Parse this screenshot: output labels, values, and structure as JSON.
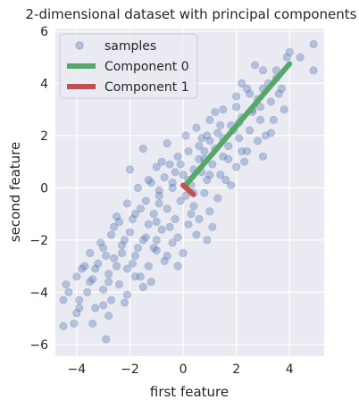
{
  "chart_data": {
    "type": "scatter",
    "title": "2-dimensional dataset with principal components",
    "xlabel": "first feature",
    "ylabel": "second feature",
    "xlim": [
      -4.8,
      5.3
    ],
    "ylim": [
      -6.45,
      6.1
    ],
    "xticks": [
      -4,
      -2,
      0,
      2,
      4
    ],
    "yticks": [
      -6,
      -4,
      -2,
      0,
      2,
      4,
      6
    ],
    "grid": true,
    "legend_position": "top-left",
    "series": [
      {
        "name": "samples",
        "kind": "scatter",
        "color": "#4c72b0",
        "opacity": 0.35,
        "points": [
          [
            4.9,
            5.5
          ],
          [
            4.0,
            5.2
          ],
          [
            3.9,
            5.0
          ],
          [
            4.9,
            4.5
          ],
          [
            3.0,
            4.5
          ],
          [
            3.5,
            4.2
          ],
          [
            3.0,
            3.8
          ],
          [
            2.2,
            4.0
          ],
          [
            3.6,
            3.6
          ],
          [
            2.8,
            3.4
          ],
          [
            2.0,
            3.1
          ],
          [
            3.3,
            3.3
          ],
          [
            2.6,
            3.0
          ],
          [
            1.5,
            3.0
          ],
          [
            2.2,
            2.7
          ],
          [
            2.9,
            2.6
          ],
          [
            3.4,
            2.6
          ],
          [
            1.8,
            2.4
          ],
          [
            2.5,
            2.2
          ],
          [
            1.3,
            2.1
          ],
          [
            2.1,
            1.9
          ],
          [
            2.8,
            1.8
          ],
          [
            1.0,
            1.8
          ],
          [
            1.7,
            1.6
          ],
          [
            0.6,
            1.6
          ],
          [
            2.4,
            1.4
          ],
          [
            0.2,
            1.4
          ],
          [
            1.5,
            1.2
          ],
          [
            0.8,
            1.1
          ],
          [
            3.0,
            1.2
          ],
          [
            -0.2,
            1.2
          ],
          [
            1.1,
            0.9
          ],
          [
            -0.5,
            0.9
          ],
          [
            2.0,
            0.8
          ],
          [
            0.4,
            0.7
          ],
          [
            -1.0,
            0.8
          ],
          [
            1.4,
            0.5
          ],
          [
            0.0,
            0.5
          ],
          [
            -0.7,
            0.4
          ],
          [
            0.9,
            0.3
          ],
          [
            -1.3,
            0.3
          ],
          [
            1.8,
            0.1
          ],
          [
            0.3,
            0.1
          ],
          [
            -0.4,
            0.0
          ],
          [
            -1.7,
            0.0
          ],
          [
            0.8,
            -0.2
          ],
          [
            -0.9,
            -0.3
          ],
          [
            1.3,
            -0.4
          ],
          [
            -0.1,
            -0.5
          ],
          [
            -1.4,
            -0.5
          ],
          [
            -2.1,
            -0.6
          ],
          [
            0.4,
            -0.7
          ],
          [
            -0.6,
            -0.8
          ],
          [
            1.0,
            -0.9
          ],
          [
            -1.1,
            -1.0
          ],
          [
            -1.8,
            -1.0
          ],
          [
            -0.3,
            -1.2
          ],
          [
            -2.4,
            -1.3
          ],
          [
            0.2,
            -1.4
          ],
          [
            -1.3,
            -1.4
          ],
          [
            -0.8,
            -1.6
          ],
          [
            -2.0,
            -1.7
          ],
          [
            -2.7,
            -1.8
          ],
          [
            0.5,
            -1.8
          ],
          [
            -1.5,
            -2.0
          ],
          [
            -0.4,
            -2.1
          ],
          [
            -2.3,
            -2.2
          ],
          [
            -3.0,
            -2.3
          ],
          [
            -1.0,
            -2.4
          ],
          [
            0.9,
            -2.0
          ],
          [
            -3.5,
            -2.5
          ],
          [
            -1.8,
            -2.6
          ],
          [
            -2.6,
            -2.7
          ],
          [
            -0.7,
            -2.8
          ],
          [
            -3.2,
            -2.9
          ],
          [
            -1.3,
            -3.0
          ],
          [
            -2.1,
            -3.1
          ],
          [
            -3.8,
            -3.1
          ],
          [
            -0.2,
            -3.0
          ],
          [
            -2.8,
            -3.3
          ],
          [
            -1.6,
            -3.4
          ],
          [
            -3.4,
            -3.5
          ],
          [
            -4.0,
            -3.4
          ],
          [
            -2.4,
            -3.7
          ],
          [
            -3.0,
            -3.9
          ],
          [
            -1.5,
            -3.8
          ],
          [
            -3.6,
            -4.0
          ],
          [
            -2.7,
            -4.3
          ],
          [
            -4.4,
            -3.7
          ],
          [
            -3.3,
            -4.6
          ],
          [
            -2.1,
            -4.1
          ],
          [
            -4.5,
            -4.3
          ],
          [
            -3.9,
            -4.6
          ],
          [
            -2.8,
            -4.9
          ],
          [
            -3.4,
            -5.2
          ],
          [
            -4.1,
            -5.2
          ],
          [
            -4.5,
            -5.3
          ],
          [
            -2.9,
            -5.8
          ],
          [
            2.0,
            3.5
          ],
          [
            1.0,
            2.6
          ],
          [
            0.5,
            2.3
          ],
          [
            -0.6,
            1.7
          ],
          [
            -1.5,
            1.5
          ],
          [
            0.1,
            2.0
          ],
          [
            2.7,
            4.7
          ],
          [
            3.8,
            3.0
          ],
          [
            2.3,
            1.0
          ],
          [
            1.6,
            0.3
          ],
          [
            -2.0,
            0.7
          ],
          [
            -0.9,
            -0.1
          ],
          [
            0.6,
            -1.2
          ],
          [
            1.1,
            -1.5
          ],
          [
            -0.5,
            -1.5
          ],
          [
            -2.2,
            -2.0
          ],
          [
            -1.1,
            -2.3
          ],
          [
            -1.9,
            -2.9
          ],
          [
            0.0,
            -2.5
          ],
          [
            -3.1,
            -2.1
          ],
          [
            -2.5,
            -3.0
          ],
          [
            -1.2,
            -3.6
          ],
          [
            -3.7,
            -3.0
          ],
          [
            -0.9,
            -0.6
          ],
          [
            0.7,
            0.6
          ],
          [
            1.9,
            2.2
          ],
          [
            3.1,
            2.0
          ],
          [
            2.4,
            3.8
          ],
          [
            1.2,
            1.5
          ],
          [
            -0.3,
            0.6
          ],
          [
            0.1,
            -0.3
          ],
          [
            -1.6,
            -0.8
          ],
          [
            -2.6,
            -1.5
          ],
          [
            2.6,
            2.9
          ],
          [
            3.5,
            4.5
          ],
          [
            1.7,
            1.1
          ],
          [
            0.9,
            2.0
          ],
          [
            -1.2,
            0.2
          ],
          [
            4.4,
            5.0
          ],
          [
            3.7,
            3.8
          ],
          [
            -0.2,
            -1.9
          ],
          [
            -1.9,
            -1.2
          ],
          [
            -2.9,
            -2.6
          ],
          [
            -3.9,
            -4.3
          ],
          [
            -1.4,
            -1.9
          ],
          [
            0.3,
            -1.0
          ],
          [
            1.4,
            2.4
          ],
          [
            2.1,
            2.5
          ],
          [
            -0.8,
            1.0
          ],
          [
            -1.0,
            -1.3
          ],
          [
            -2.3,
            -2.5
          ],
          [
            -3.3,
            -3.1
          ],
          [
            0.7,
            1.9
          ],
          [
            2.9,
            3.1
          ],
          [
            3.2,
            4.0
          ],
          [
            -4.0,
            -4.8
          ],
          [
            -2.2,
            -4.4
          ],
          [
            -1.7,
            -2.3
          ],
          [
            0.4,
            -0.2
          ],
          [
            1.0,
            0.5
          ],
          [
            -0.4,
            0.2
          ],
          [
            2.2,
            1.4
          ],
          [
            1.5,
            1.9
          ],
          [
            -0.1,
            0.9
          ],
          [
            0.6,
            1.1
          ],
          [
            -2.8,
            -3.6
          ],
          [
            -3.5,
            -3.6
          ],
          [
            -1.0,
            -2.0
          ],
          [
            0.2,
            0.3
          ],
          [
            1.2,
            2.9
          ],
          [
            2.5,
            3.6
          ],
          [
            3.3,
            2.1
          ],
          [
            -1.8,
            -3.4
          ],
          [
            -0.6,
            -2.6
          ],
          [
            -2.5,
            -1.1
          ],
          [
            -3.0,
            -4.5
          ],
          [
            -4.3,
            -4.0
          ],
          [
            0.8,
            1.4
          ]
        ]
      },
      {
        "name": "Component 0",
        "kind": "line",
        "color": "#55a868",
        "line_width": 6,
        "points": [
          [
            0.05,
            0.05
          ],
          [
            4.0,
            4.75
          ]
        ]
      },
      {
        "name": "Component 1",
        "kind": "line",
        "color": "#c44e52",
        "line_width": 6,
        "points": [
          [
            0.0,
            0.1
          ],
          [
            0.38,
            -0.25
          ]
        ]
      }
    ]
  }
}
